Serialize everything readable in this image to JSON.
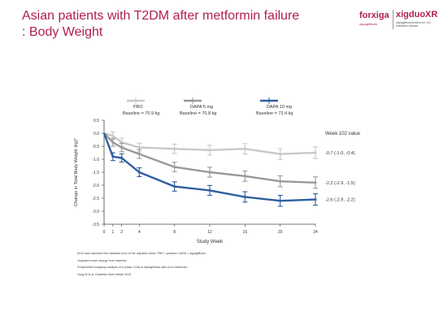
{
  "header": {
    "title_line1": "Asian patients with T2DM after metformin failure",
    "title_line2": ": Body Weight"
  },
  "logo": {
    "brand1": "forxiga",
    "brand1_sub": "dapagliflozin",
    "brand2": "xigduoXR",
    "brand2_sub": "dapagliflozin/metformin HCl extended-release"
  },
  "colors": {
    "title": "#b0214a",
    "pbo": "#c8c8c8",
    "dapa5": "#999999",
    "dapa10": "#2f5f9e"
  },
  "chart_data": {
    "type": "line",
    "xlabel": "Study Week",
    "ylabel": "Change in Total Body Weight (kg)*",
    "ylim": [
      -3.5,
      0.5
    ],
    "yticks": [
      "0.5",
      "0.0",
      "-0.5",
      "-1.0",
      "-1.5",
      "-2.0",
      "-2.5",
      "-3.0",
      "-3.5"
    ],
    "xticks": [
      "0",
      "1",
      "2",
      "4",
      "8",
      "12",
      "16",
      "20",
      "24"
    ],
    "grid": false,
    "legend_position": "top",
    "side_title": "Week 102 value",
    "series": [
      {
        "name": "PBO",
        "baseline": "Baseline = 70.9 kg",
        "end_label": "-0.7 (-1.0, -0.4)",
        "x": [
          1,
          2,
          4,
          8,
          12,
          16,
          20,
          24
        ],
        "y": [
          -0.1,
          -0.35,
          -0.55,
          -0.6,
          -0.65,
          -0.6,
          -0.8,
          -0.75
        ]
      },
      {
        "name": "DAPA 5 mg",
        "baseline": "Baseline = 70.8 kg",
        "end_label": "-2.2 (-2.9, -1.5)",
        "x": [
          1,
          2,
          4,
          8,
          12,
          16,
          20,
          24
        ],
        "y": [
          -0.35,
          -0.55,
          -0.8,
          -1.3,
          -1.5,
          -1.65,
          -1.85,
          -1.9
        ]
      },
      {
        "name": "DAPA 10 mg",
        "baseline": "Baseline = 73.4 kg",
        "end_label": "-2.6 (-2.9, -2.2)",
        "x": [
          1,
          2,
          4,
          8,
          12,
          16,
          20,
          24
        ],
        "y": [
          -0.9,
          -0.95,
          -1.5,
          -2.05,
          -2.2,
          -2.45,
          -2.6,
          -2.55
        ]
      }
    ]
  },
  "footnotes": {
    "line1": "Error bars represent the standard error of the adjusted mean; PBO = placebo; DAPA = dapagliflozin",
    "line2": "*Adjusted mean change from baseline",
    "line3": "Prespecified subgroup analysis of a phase 3 trial of dapagliflozin add-on to metformin",
    "line4": "Yang W et al. Diabetes Obes Metab 2016"
  }
}
